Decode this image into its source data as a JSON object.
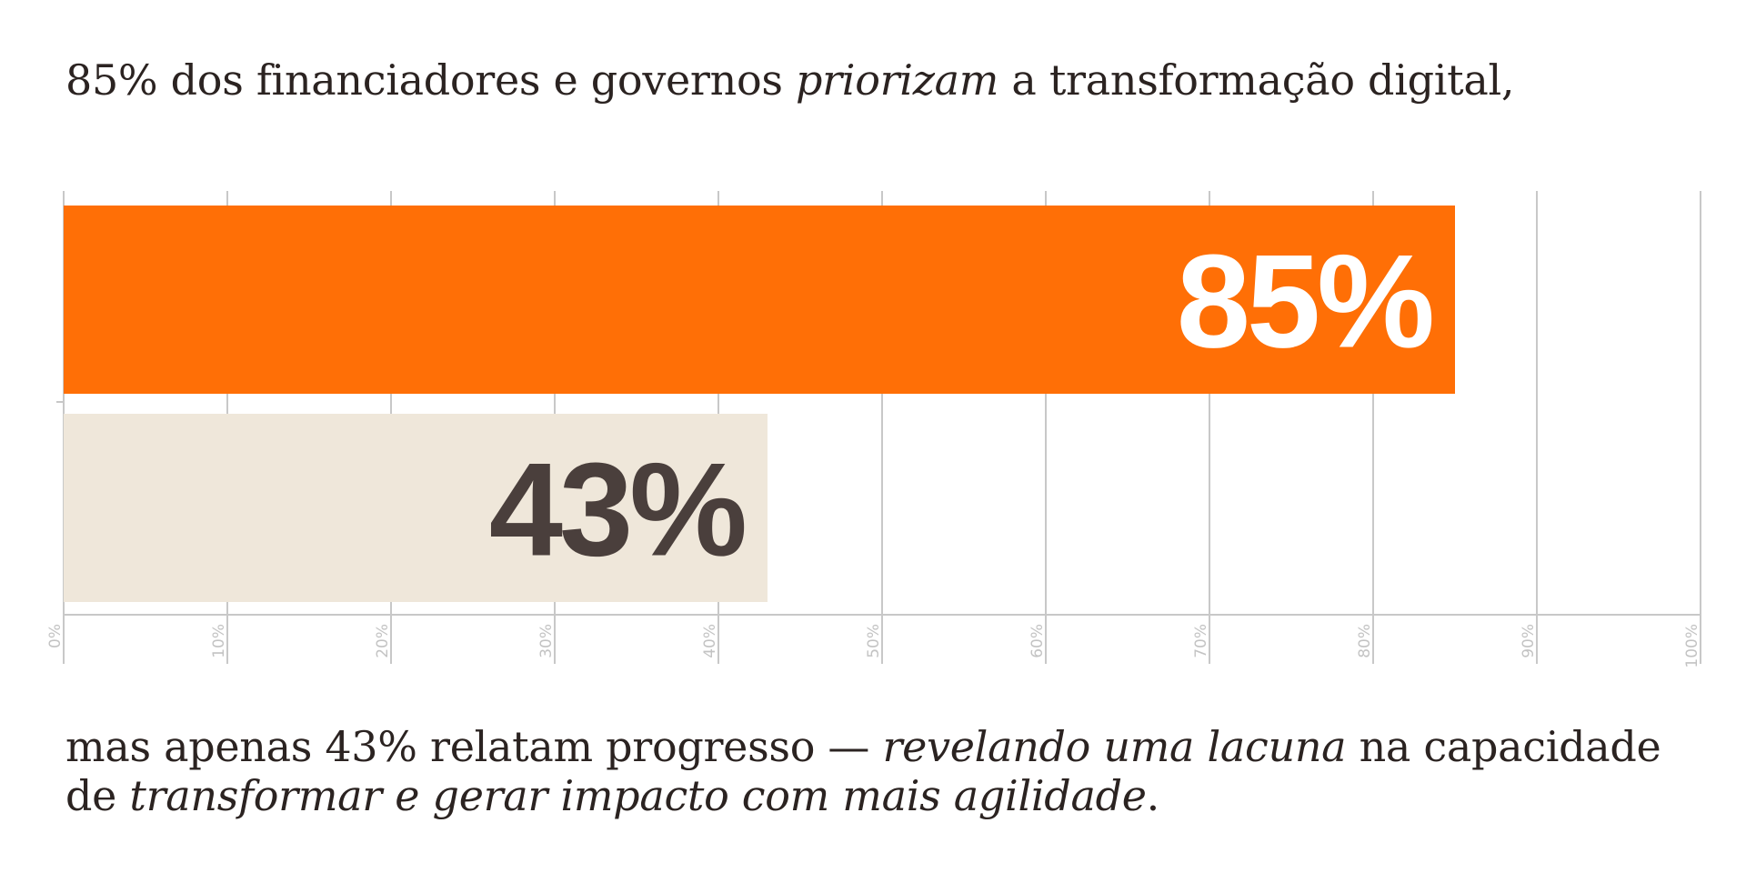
{
  "headline": {
    "part1": "85% dos financiadores e governos ",
    "emphasis": "priorizam",
    "part2": " a transformação digital,"
  },
  "footer": {
    "line1_part1": "mas apenas 43% relatam progresso — ",
    "line1_emphasis": "revelando uma lacuna",
    "line1_part2": " na capacidade",
    "line2_part1": "de ",
    "line2_emphasis": "transformar e gerar impacto com mais agilidade",
    "line2_part2": "."
  },
  "chart_data": {
    "type": "bar",
    "orientation": "horizontal",
    "bars": [
      {
        "value": 85,
        "label": "85%",
        "color": "#ff6f06",
        "label_color": "#ffffff"
      },
      {
        "value": 43,
        "label": "43%",
        "color": "#efe7da",
        "label_color": "#4a3f3c"
      }
    ],
    "xlim": [
      0,
      100
    ],
    "ticks": [
      {
        "value": 0,
        "label": "0%"
      },
      {
        "value": 10,
        "label": "10%"
      },
      {
        "value": 20,
        "label": "20%"
      },
      {
        "value": 30,
        "label": "30%"
      },
      {
        "value": 40,
        "label": "40%"
      },
      {
        "value": 50,
        "label": "50%"
      },
      {
        "value": 60,
        "label": "60%"
      },
      {
        "value": 70,
        "label": "70%"
      },
      {
        "value": 80,
        "label": "80%"
      },
      {
        "value": 90,
        "label": "90%"
      },
      {
        "value": 100,
        "label": "100%"
      }
    ],
    "grid": true,
    "grid_color": "#c8c8c8"
  }
}
